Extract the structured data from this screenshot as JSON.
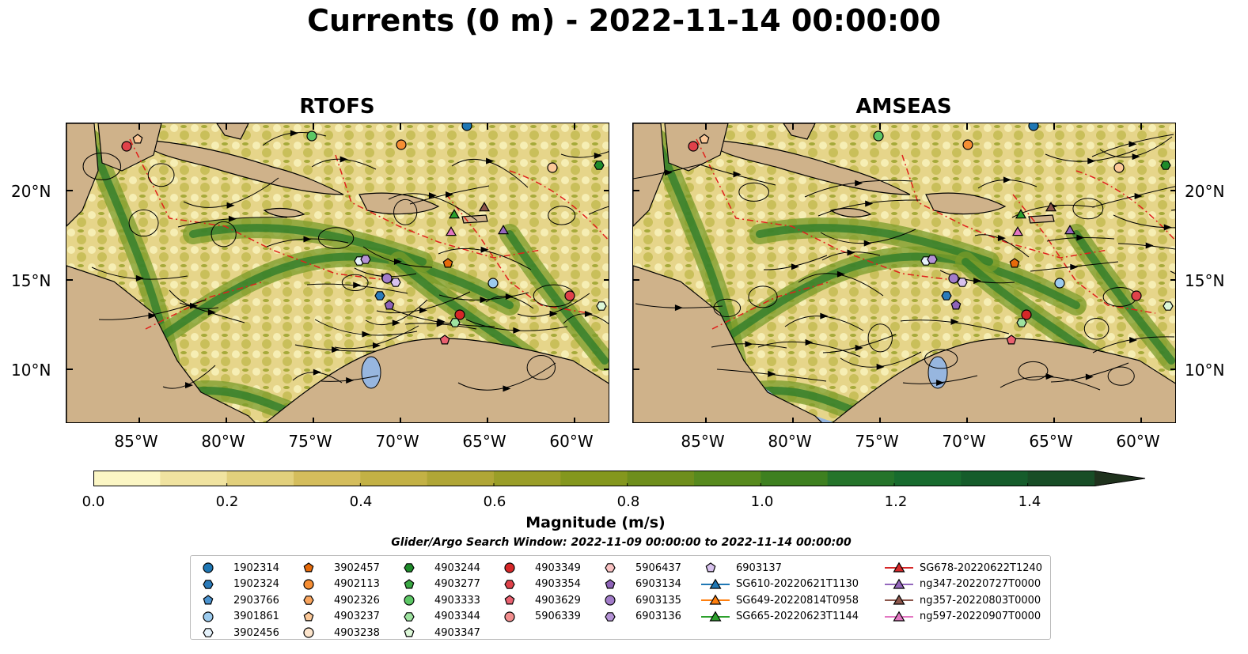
{
  "title": "Currents (0 m) - 2022-11-14 00:00:00",
  "panels": [
    {
      "title": "RTOFS"
    },
    {
      "title": "AMSEAS"
    }
  ],
  "axes": {
    "lat_labels": [
      "20°N",
      "15°N",
      "10°N"
    ],
    "lon_labels": [
      "85°W",
      "80°W",
      "75°W",
      "70°W",
      "65°W",
      "60°W"
    ]
  },
  "colorbar": {
    "label": "Magnitude (m/s)",
    "ticks": [
      "0.0",
      "0.2",
      "0.4",
      "0.6",
      "0.8",
      "1.0",
      "1.2",
      "1.4"
    ],
    "colors": [
      "#fbf6c4",
      "#f0e3a0",
      "#e2d07c",
      "#d4bd5c",
      "#c3b145",
      "#b0a636",
      "#9a9e28",
      "#84971e",
      "#6e8e1c",
      "#578a1e",
      "#3e8020",
      "#25742a",
      "#186b2e",
      "#155c2b",
      "#184d26",
      "#1c3f22",
      "#1f321d"
    ],
    "extend": "max"
  },
  "search_window": "Glider/Argo Search Window: 2022-11-09 00:00:00 to 2022-11-14 00:00:00",
  "legend": {
    "columns": [
      [
        {
          "label": "1902314",
          "marker": "circle",
          "color": "#1f77b4"
        },
        {
          "label": "1902324",
          "marker": "hexagon",
          "color": "#2b7bba"
        },
        {
          "label": "2903766",
          "marker": "pentagon",
          "color": "#4c94d0"
        },
        {
          "label": "3901861",
          "marker": "circle",
          "color": "#9ccbee"
        },
        {
          "label": "3902456",
          "marker": "hexagon",
          "color": "#e5f2fb"
        }
      ],
      [
        {
          "label": "3902457",
          "marker": "pentagon",
          "color": "#e66a0a"
        },
        {
          "label": "4902113",
          "marker": "circle",
          "color": "#f68e34"
        },
        {
          "label": "4902326",
          "marker": "hexagon",
          "color": "#f9a55e"
        },
        {
          "label": "4903237",
          "marker": "pentagon",
          "color": "#fbc898"
        },
        {
          "label": "4903238",
          "marker": "circle",
          "color": "#fde5cc"
        }
      ],
      [
        {
          "label": "4903244",
          "marker": "hexagon",
          "color": "#1e8b2a"
        },
        {
          "label": "4903277",
          "marker": "pentagon",
          "color": "#3aa844"
        },
        {
          "label": "4903333",
          "marker": "circle",
          "color": "#5cc765"
        },
        {
          "label": "4903344",
          "marker": "hexagon",
          "color": "#9ee3a0"
        },
        {
          "label": "4903347",
          "marker": "pentagon",
          "color": "#dcf7d7"
        }
      ],
      [
        {
          "label": "4903349",
          "marker": "circle",
          "color": "#d62728"
        },
        {
          "label": "4903354",
          "marker": "hexagon",
          "color": "#e0424a"
        },
        {
          "label": "4903629",
          "marker": "pentagon",
          "color": "#ea6170"
        },
        {
          "label": "5906339",
          "marker": "circle",
          "color": "#f28e8e"
        }
      ],
      [
        {
          "label": "5906437",
          "marker": "hexagon",
          "color": "#f9c2c2"
        },
        {
          "label": "6903134",
          "marker": "pentagon",
          "color": "#8e63b8"
        },
        {
          "label": "6903135",
          "marker": "circle",
          "color": "#a27cc9"
        },
        {
          "label": "6903136",
          "marker": "hexagon",
          "color": "#b593d6"
        }
      ],
      [
        {
          "label": "6903137",
          "marker": "pentagon",
          "color": "#d8c2ee"
        },
        {
          "label": "SG610-20220621T1130",
          "marker": "triangle",
          "color": "#1f77b4"
        },
        {
          "label": "SG649-20220814T0958",
          "marker": "triangle",
          "color": "#ff7f0e"
        },
        {
          "label": "SG665-20220623T1144",
          "marker": "triangle",
          "color": "#2ca02c"
        }
      ],
      [
        {
          "label": "SG678-20220622T1240",
          "marker": "triangle",
          "color": "#d62728"
        },
        {
          "label": "ng347-20220727T0000",
          "marker": "triangle",
          "color": "#9467bd"
        },
        {
          "label": "ng357-20220803T0000",
          "marker": "triangle",
          "color": "#8c564b"
        },
        {
          "label": "ng597-20220907T0000",
          "marker": "triangle",
          "color": "#e377c2"
        }
      ]
    ]
  }
}
